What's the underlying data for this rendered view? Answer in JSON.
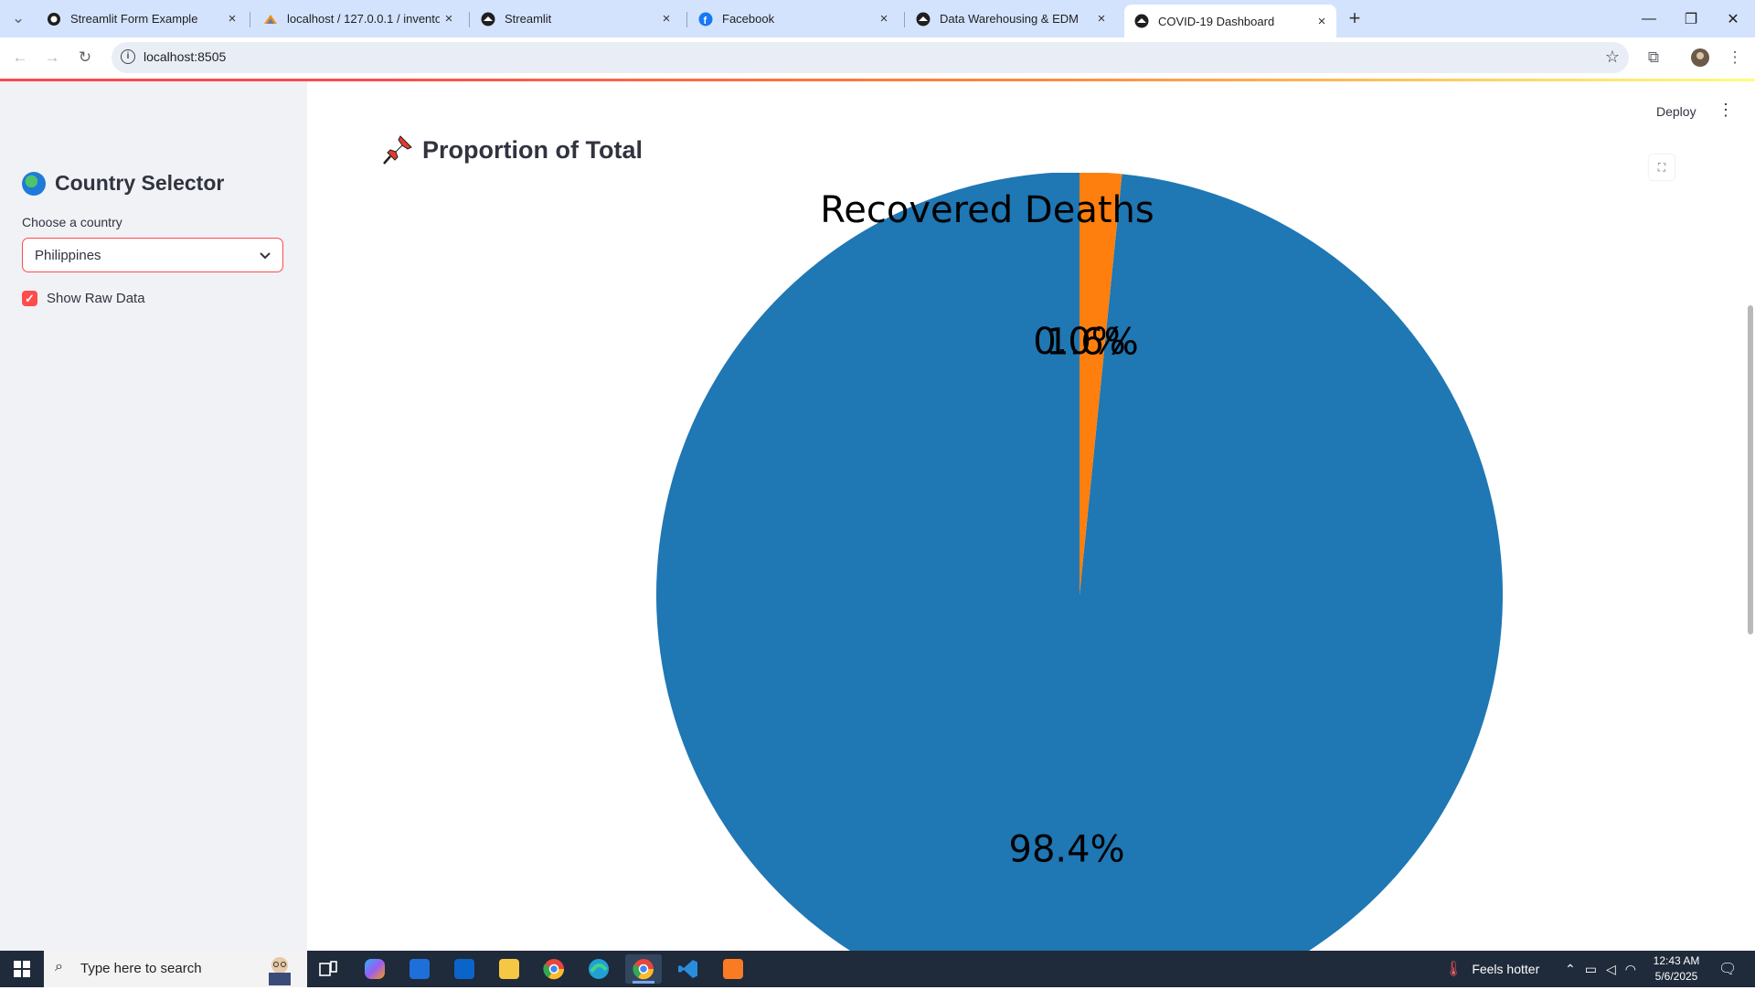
{
  "browser": {
    "tabs": [
      {
        "title": "Streamlit Form Example",
        "active": false,
        "icon": "github-icon"
      },
      {
        "title": "localhost / 127.0.0.1 / inventory",
        "active": false,
        "icon": "phpmyadmin-icon"
      },
      {
        "title": "Streamlit",
        "active": false,
        "icon": "streamlit-icon"
      },
      {
        "title": "Facebook",
        "active": false,
        "icon": "facebook-icon"
      },
      {
        "title": "Data Warehousing & EDM",
        "active": false,
        "icon": "streamlit-icon"
      },
      {
        "title": "COVID-19 Dashboard",
        "active": true,
        "icon": "streamlit-icon"
      }
    ],
    "url": "localhost:8505"
  },
  "sidebar": {
    "title": "Country Selector",
    "select_label": "Choose a country",
    "selected_country": "Philippines",
    "checkbox_label": "Show Raw Data",
    "checkbox_checked": true
  },
  "main": {
    "deploy_label": "Deploy",
    "section_heading": "Proportion of Total"
  },
  "chart_data": {
    "type": "pie",
    "title": "Recovered  Deaths",
    "slices": [
      {
        "label": "Recovered",
        "value": 98.4,
        "pct_label": "98.4%",
        "color": "#1f77b4"
      },
      {
        "label": "Deaths",
        "value": 1.6,
        "pct_label": "1.6%",
        "color": "#ff7f0e"
      },
      {
        "label": "",
        "value": 0.0,
        "pct_label": "0.0%",
        "color": "#2ca02c"
      }
    ]
  },
  "taskbar": {
    "search_placeholder": "Type here to search",
    "weather": "Feels hotter",
    "time": "12:43 AM",
    "date": "5/6/2025"
  },
  "colors": {
    "streamlit_accent": "#ff4b4b",
    "tabstrip": "#d3e3fd",
    "sidebar_bg": "#f0f2f6"
  }
}
